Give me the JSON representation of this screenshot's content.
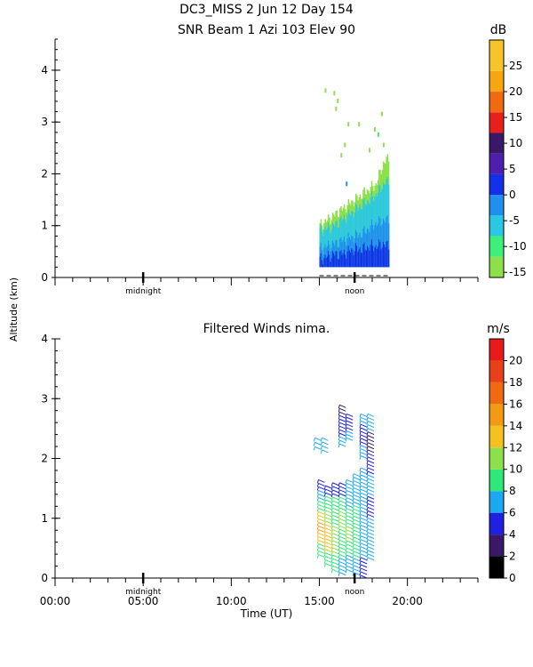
{
  "header": {
    "line1": "DC3_MISS   2 Jun 12 Day 154",
    "line2": "SNR Beam 1 Azi 103 Elev 90"
  },
  "y_axis_label": "Altitude (km)",
  "x_axis_label": "Time (UT)",
  "day_markers": {
    "midnight": "midnight",
    "noon": "noon"
  },
  "chart_data": [
    {
      "type": "heatmap",
      "title": "SNR Beam 1 Azi 103 Elev 90",
      "ylabel": "Altitude (km)",
      "xlabel": "",
      "xlim_hours": [
        0,
        24
      ],
      "ylim_km": [
        0,
        4.6
      ],
      "y_ticks": [
        0,
        1,
        2,
        3,
        4
      ],
      "colorbar": {
        "unit": "dB",
        "range": [
          -16,
          30
        ],
        "tick_values": [
          -15,
          -10,
          -5,
          0,
          5,
          10,
          15,
          20,
          25
        ],
        "tick_labels": [
          "-15",
          "-10",
          "-5",
          "0",
          "5",
          "10",
          "15",
          "20",
          "25"
        ],
        "bands": [
          {
            "from": -16,
            "to": -12,
            "color": "#8ee04a"
          },
          {
            "from": -12,
            "to": -8,
            "color": "#3ef07a"
          },
          {
            "from": -8,
            "to": -4,
            "color": "#2bc8e6"
          },
          {
            "from": -4,
            "to": 0,
            "color": "#1f8ff0"
          },
          {
            "from": 0,
            "to": 4,
            "color": "#1230e8"
          },
          {
            "from": 4,
            "to": 8,
            "color": "#4e1fae"
          },
          {
            "from": 8,
            "to": 12,
            "color": "#3a1868"
          },
          {
            "from": 12,
            "to": 16,
            "color": "#e8201a"
          },
          {
            "from": 16,
            "to": 20,
            "color": "#f06a10"
          },
          {
            "from": 20,
            "to": 24,
            "color": "#f5a612"
          },
          {
            "from": 24,
            "to": 30,
            "color": "#f7c52a"
          }
        ]
      },
      "grid": false,
      "data_extent": {
        "time_start_h": 15.0,
        "time_end_h": 18.9,
        "alt_bottom_km": 0.2,
        "alt_top_km": 3.8
      },
      "profile": {
        "time_h": [
          15.0,
          15.4,
          15.8,
          16.2,
          16.6,
          17.0,
          17.4,
          17.8,
          18.2,
          18.6,
          18.9
        ],
        "weak_top_km": [
          1.0,
          1.1,
          1.2,
          1.3,
          1.4,
          1.5,
          1.6,
          1.7,
          1.8,
          2.2,
          2.3
        ],
        "mid_top_km": [
          0.9,
          0.95,
          1.0,
          1.1,
          1.2,
          1.3,
          1.4,
          1.5,
          1.6,
          1.8,
          1.85
        ],
        "strong_top_km": [
          0.55,
          0.6,
          0.65,
          0.7,
          0.75,
          0.8,
          0.85,
          0.95,
          1.05,
          1.1,
          1.1
        ],
        "core_top_km": [
          0.35,
          0.4,
          0.45,
          0.45,
          0.5,
          0.55,
          0.55,
          0.6,
          0.6,
          0.65,
          0.6
        ]
      }
    },
    {
      "type": "scatter",
      "title": "Filtered Winds nima.",
      "ylabel": "Altitude (km)",
      "xlabel": "Time (UT)",
      "xlim_hours": [
        0,
        24
      ],
      "ylim_km": [
        0,
        4.0
      ],
      "y_ticks": [
        0,
        1,
        2,
        3,
        4
      ],
      "x_ticks_hours": [
        0,
        5,
        10,
        15,
        20
      ],
      "x_tick_labels": [
        "00:00",
        "05:00",
        "10:00",
        "15:00",
        "20:00"
      ],
      "colorbar": {
        "unit": "m/s",
        "range": [
          0,
          22
        ],
        "tick_values": [
          0,
          2,
          4,
          6,
          8,
          10,
          12,
          14,
          16,
          18,
          20
        ],
        "tick_labels": [
          "0",
          "2",
          "4",
          "6",
          "8",
          "10",
          "12",
          "14",
          "16",
          "18",
          "20"
        ],
        "bands": [
          {
            "from": 0,
            "to": 2,
            "color": "#000000"
          },
          {
            "from": 2,
            "to": 4,
            "color": "#3a1868"
          },
          {
            "from": 4,
            "to": 6,
            "color": "#2020e0"
          },
          {
            "from": 6,
            "to": 8,
            "color": "#1ca8f0"
          },
          {
            "from": 8,
            "to": 10,
            "color": "#2ee87a"
          },
          {
            "from": 10,
            "to": 12,
            "color": "#8ee04a"
          },
          {
            "from": 12,
            "to": 14,
            "color": "#f5c020"
          },
          {
            "from": 14,
            "to": 16,
            "color": "#f39a14"
          },
          {
            "from": 16,
            "to": 18,
            "color": "#f06a10"
          },
          {
            "from": 18,
            "to": 20,
            "color": "#e8401a"
          },
          {
            "from": 20,
            "to": 22,
            "color": "#e81a1a"
          }
        ]
      },
      "grid": false,
      "wind_columns": [
        {
          "time_h": 15.3,
          "bottom_km": 0.35,
          "top_km": 1.6,
          "speed_ms": [
            8,
            12,
            14,
            13,
            9,
            6,
            5
          ]
        },
        {
          "time_h": 15.7,
          "bottom_km": 0.2,
          "top_km": 1.5,
          "speed_ms": [
            9,
            12,
            12,
            10,
            8,
            5
          ]
        },
        {
          "time_h": 16.1,
          "bottom_km": 0.1,
          "top_km": 1.55,
          "speed_ms": [
            8,
            10,
            11,
            9,
            8,
            4
          ]
        },
        {
          "time_h": 16.5,
          "bottom_km": 0.05,
          "top_km": 1.55,
          "speed_ms": [
            6,
            8,
            9,
            10,
            8,
            5
          ]
        },
        {
          "time_h": 16.5,
          "bottom_km": 2.2,
          "top_km": 2.85,
          "speed_ms": [
            6,
            5,
            4,
            3
          ]
        },
        {
          "time_h": 16.9,
          "bottom_km": 0.1,
          "top_km": 1.6,
          "speed_ms": [
            7,
            9,
            10,
            9,
            7,
            6
          ]
        },
        {
          "time_h": 16.9,
          "bottom_km": 2.3,
          "top_km": 2.7,
          "speed_ms": [
            6,
            5,
            4
          ]
        },
        {
          "time_h": 17.3,
          "bottom_km": 0.05,
          "top_km": 1.7,
          "speed_ms": [
            6,
            8,
            9,
            8,
            7,
            6
          ]
        },
        {
          "time_h": 17.7,
          "bottom_km": 0.0,
          "top_km": 1.8,
          "speed_ms": [
            4,
            7,
            7,
            6,
            6,
            7
          ]
        },
        {
          "time_h": 17.7,
          "bottom_km": 2.0,
          "top_km": 2.7,
          "speed_ms": [
            6,
            5,
            4,
            6
          ]
        },
        {
          "time_h": 18.1,
          "bottom_km": 0.3,
          "top_km": 2.7,
          "speed_ms": [
            6,
            6,
            5,
            6,
            4,
            3,
            6
          ]
        },
        {
          "time_h": 15.1,
          "bottom_km": 2.15,
          "top_km": 2.3,
          "speed_ms": [
            6,
            6
          ]
        },
        {
          "time_h": 15.5,
          "bottom_km": 2.1,
          "top_km": 2.3,
          "speed_ms": [
            6,
            7
          ]
        }
      ]
    }
  ]
}
